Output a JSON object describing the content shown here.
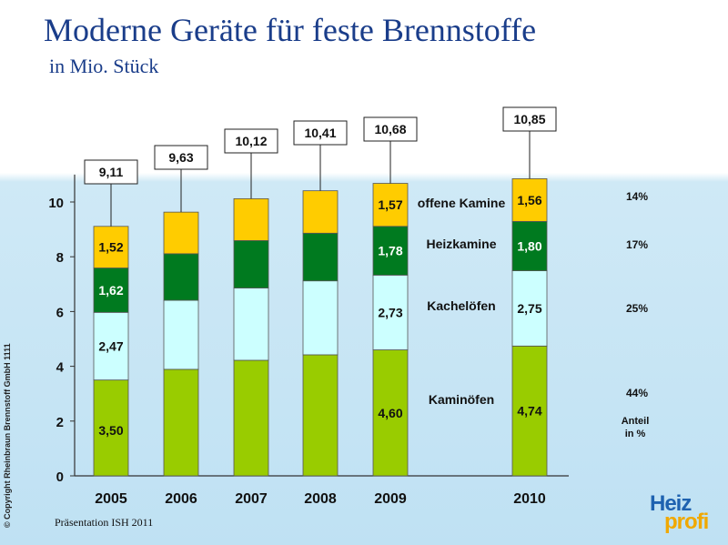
{
  "header": {
    "title": "Moderne Geräte für feste Brennstoffe",
    "subtitle": "in Mio. Stück"
  },
  "footer": {
    "presentation": "Präsentation ISH 2011",
    "copyright": "© Copyright Rheinbraun Brennstoff GmbH  1111"
  },
  "logo": {
    "part1": "Heiz",
    "part2": "profi"
  },
  "chart_data": {
    "type": "bar",
    "stacked": true,
    "title": "Moderne Geräte für feste Brennstoffe",
    "subtitle": "in Mio. Stück",
    "categories": [
      "2005",
      "2006",
      "2007",
      "2008",
      "2009",
      "2010"
    ],
    "ylim": [
      0,
      11
    ],
    "yticks": [
      0,
      2,
      4,
      6,
      8,
      10
    ],
    "totals": [
      9.11,
      9.63,
      10.12,
      10.41,
      10.68,
      10.85
    ],
    "total_labels": [
      "9,11",
      "9,63",
      "10,12",
      "10,41",
      "10,68",
      "10,85"
    ],
    "series": [
      {
        "name": "Kaminöfen",
        "color": "#99cc00",
        "values": [
          3.5,
          3.89,
          4.22,
          4.42,
          4.6,
          4.74
        ],
        "labels": [
          "3,50",
          "",
          "",
          "",
          "4,60",
          "4,74"
        ]
      },
      {
        "name": "Kachelöfen",
        "color": "#ccffff",
        "values": [
          2.47,
          2.52,
          2.64,
          2.7,
          2.73,
          2.75
        ],
        "labels": [
          "2,47",
          "",
          "",
          "",
          "2,73",
          "2,75"
        ]
      },
      {
        "name": "Heizkamine",
        "color": "#007a1f",
        "values": [
          1.62,
          1.7,
          1.73,
          1.74,
          1.78,
          1.8
        ],
        "labels": [
          "1,62",
          "",
          "",
          "",
          "1,78",
          "1,80"
        ]
      },
      {
        "name": "offene Kamine",
        "color": "#ffcc00",
        "values": [
          1.52,
          1.52,
          1.53,
          1.55,
          1.57,
          1.56
        ],
        "labels": [
          "1,52",
          "",
          "",
          "",
          "1,57",
          "1,56"
        ]
      }
    ],
    "series_labels": [
      "Kaminöfen",
      "Kachelöfen",
      "Heizkamine",
      "offene Kamine"
    ],
    "shares": [
      "44%",
      "25%",
      "17%",
      "14%"
    ],
    "share_caption": [
      "Anteil",
      "in %"
    ]
  }
}
